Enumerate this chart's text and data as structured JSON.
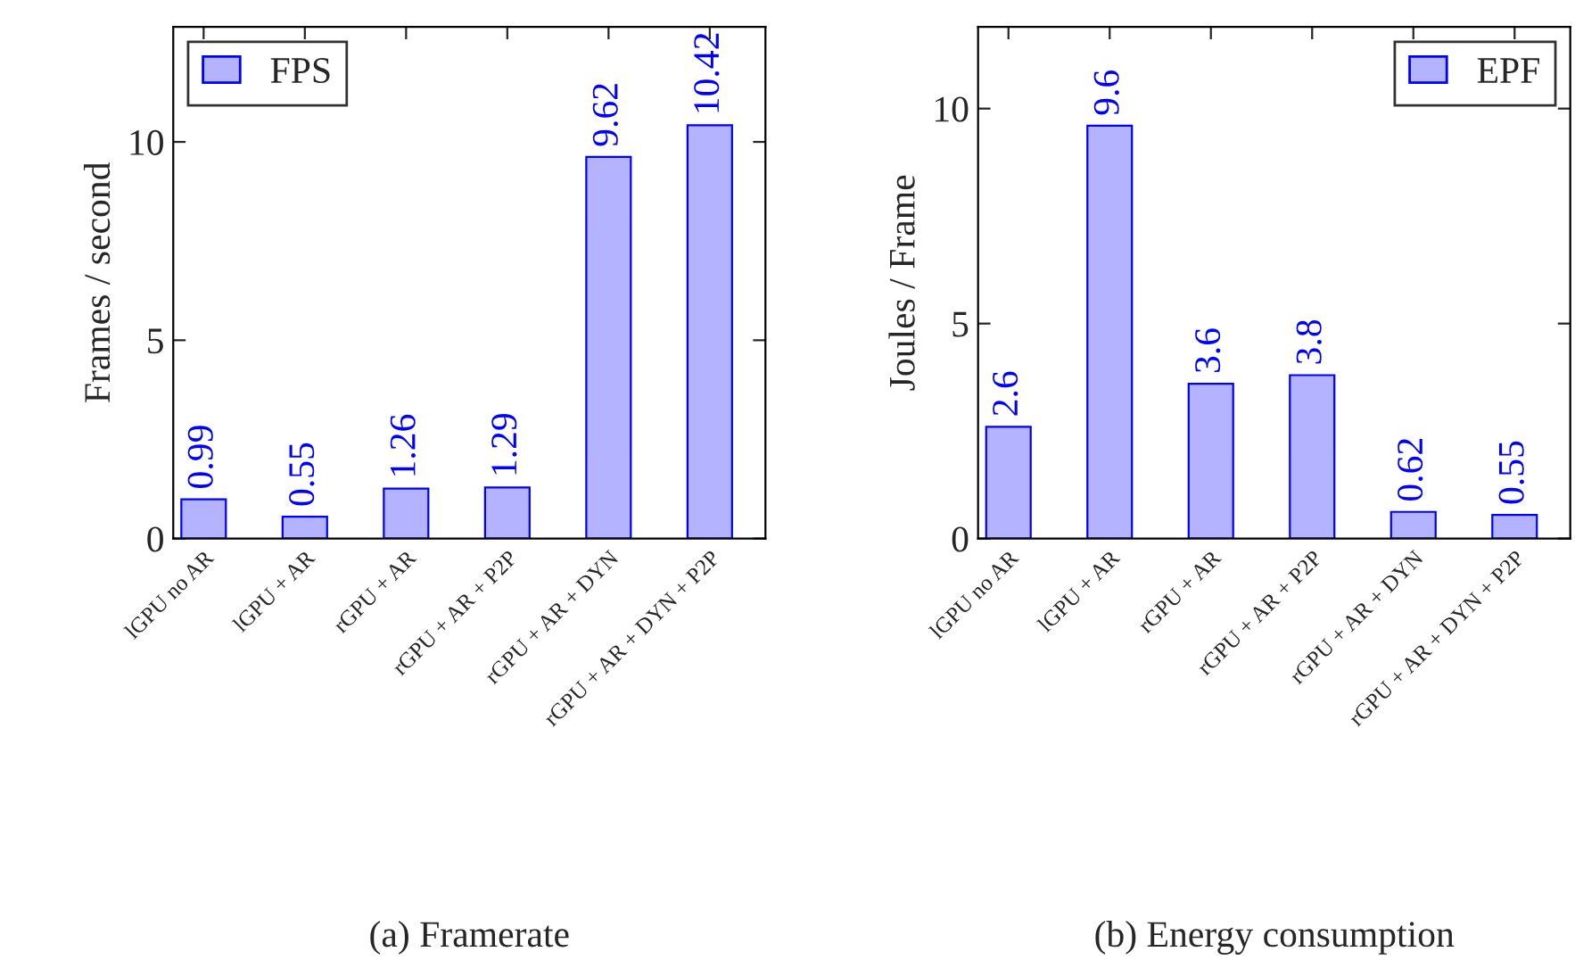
{
  "chart_data": [
    {
      "type": "bar",
      "title": "(a) Framerate",
      "ylabel": "Frames / second",
      "categories": [
        "lGPU no AR",
        "lGPU + AR",
        "rGPU + AR",
        "rGPU + AR + P2P",
        "rGPU + AR + DYN",
        "rGPU + AR + DYN + P2P"
      ],
      "series": [
        {
          "name": "FPS",
          "color": "#b3b3ff",
          "values": [
            0.99,
            0.55,
            1.26,
            1.29,
            9.62,
            10.42
          ]
        }
      ],
      "ylim": [
        0,
        12.9
      ],
      "yticks": [
        0,
        5,
        10
      ],
      "data_labels": true,
      "legend": "top left",
      "grid": false
    },
    {
      "type": "bar",
      "title": "(b) Energy consumption",
      "ylabel": "Joules / Frame",
      "categories": [
        "lGPU no AR",
        "lGPU + AR",
        "rGPU + AR",
        "rGPU + AR + P2P",
        "rGPU + AR + DYN",
        "rGPU + AR + DYN + P2P"
      ],
      "series": [
        {
          "name": "EPF",
          "color": "#b3b3ff",
          "values": [
            2.6,
            9.6,
            3.6,
            3.8,
            0.62,
            0.55
          ]
        }
      ],
      "ylim": [
        0,
        11.9
      ],
      "yticks": [
        0,
        5,
        10
      ],
      "data_labels": true,
      "legend": "top right",
      "grid": false
    }
  ]
}
